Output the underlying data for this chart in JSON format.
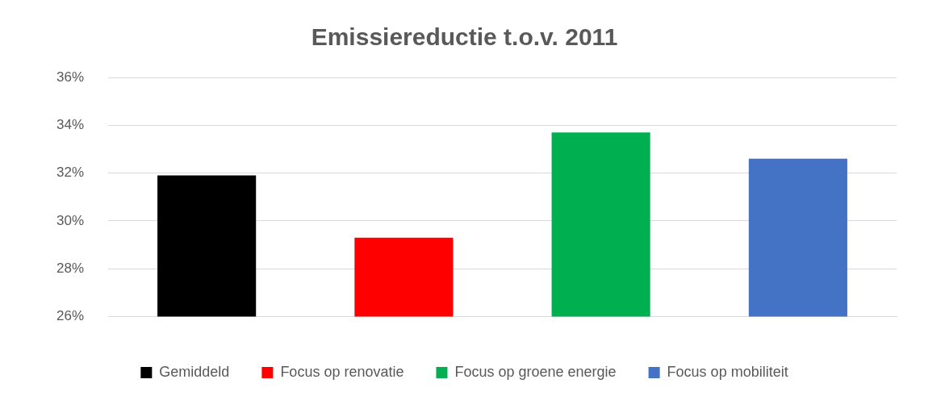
{
  "chart_data": {
    "type": "bar",
    "title": "Emissiereductie t.o.v. 2011",
    "categories": [
      null
    ],
    "series": [
      {
        "name": "Gemiddeld",
        "color": "#000000",
        "values": [
          31.9
        ]
      },
      {
        "name": "Focus op renovatie",
        "color": "#ff0000",
        "values": [
          29.3
        ]
      },
      {
        "name": "Focus op groene energie",
        "color": "#00b050",
        "values": [
          33.7
        ]
      },
      {
        "name": "Focus op mobiliteit",
        "color": "#4472c4",
        "values": [
          32.6
        ]
      }
    ],
    "ylim": [
      26,
      36
    ],
    "yticks": [
      {
        "value": 26,
        "label": "26%"
      },
      {
        "value": 28,
        "label": "28%"
      },
      {
        "value": 30,
        "label": "30%"
      },
      {
        "value": 32,
        "label": "32%"
      },
      {
        "value": 34,
        "label": "34%"
      },
      {
        "value": 36,
        "label": "36%"
      }
    ],
    "grid": "y",
    "legend": "bottom"
  }
}
